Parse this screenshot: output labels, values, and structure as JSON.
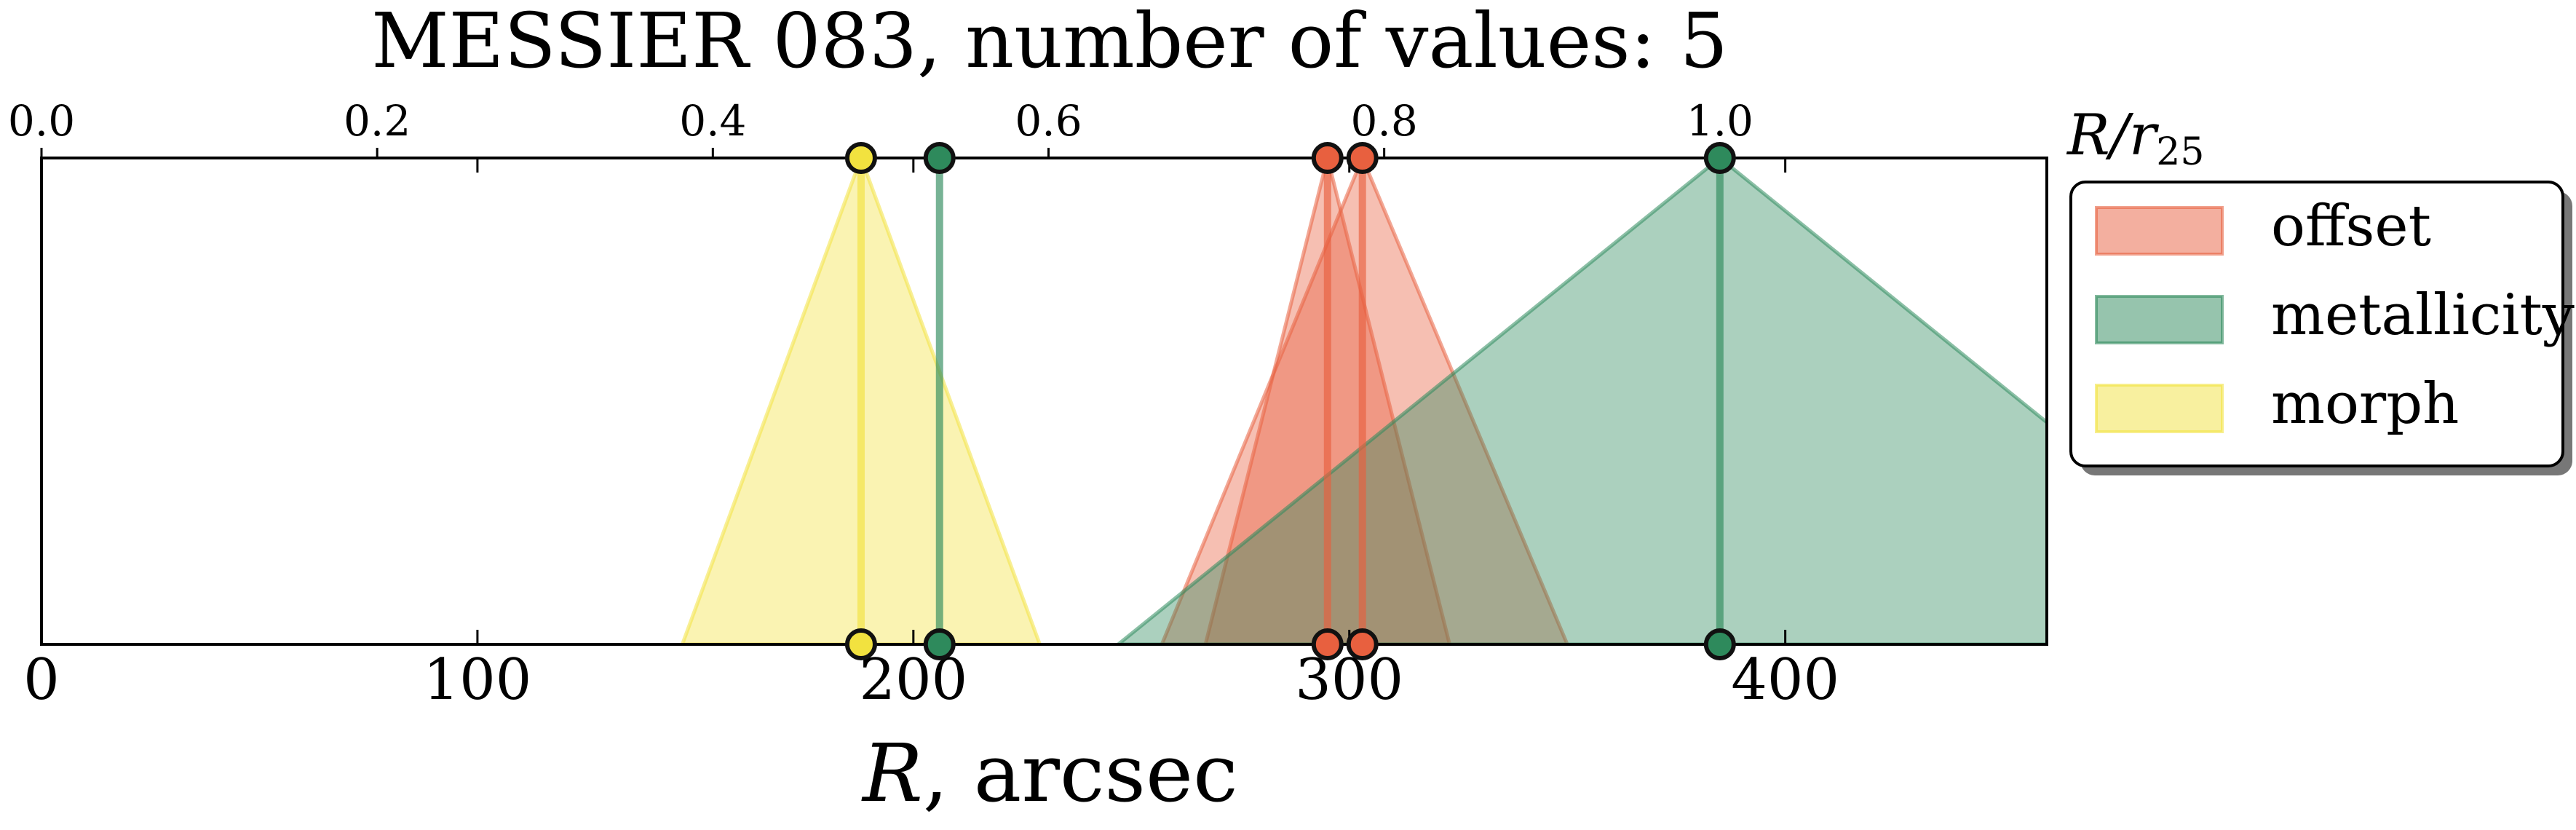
{
  "chart_data": {
    "type": "area",
    "title": "MESSIER 083, number of values: 5",
    "xlabel_main": "R",
    "xlabel_unit": ", arcsec",
    "top_axis_label_main": "R/r",
    "top_axis_label_sub": "25",
    "xlim": [
      0,
      460
    ],
    "ylim": [
      0,
      1
    ],
    "bottom_ticks": [
      0,
      100,
      200,
      300,
      400
    ],
    "top_ticks": [
      "0.0",
      "0.2",
      "0.4",
      "0.6",
      "0.8",
      "1.0"
    ],
    "top_ticks_r_per_unit": 385,
    "legend_position": "upper-right-outside",
    "series": [
      {
        "name": "offset",
        "color": "#e8603f",
        "estimates": [
          {
            "R": 295,
            "lo": 267,
            "hi": 323
          },
          {
            "R": 303,
            "lo": 257,
            "hi": 350
          }
        ]
      },
      {
        "name": "metallicity",
        "color": "#2e8a5c",
        "estimates": [
          {
            "R": 206,
            "lo": 206,
            "hi": 206
          },
          {
            "R": 385,
            "lo": 247,
            "hi": 523
          }
        ]
      },
      {
        "name": "morph",
        "color": "#f2e23f",
        "estimates": [
          {
            "R": 188,
            "lo": 147,
            "hi": 229
          }
        ]
      }
    ]
  }
}
